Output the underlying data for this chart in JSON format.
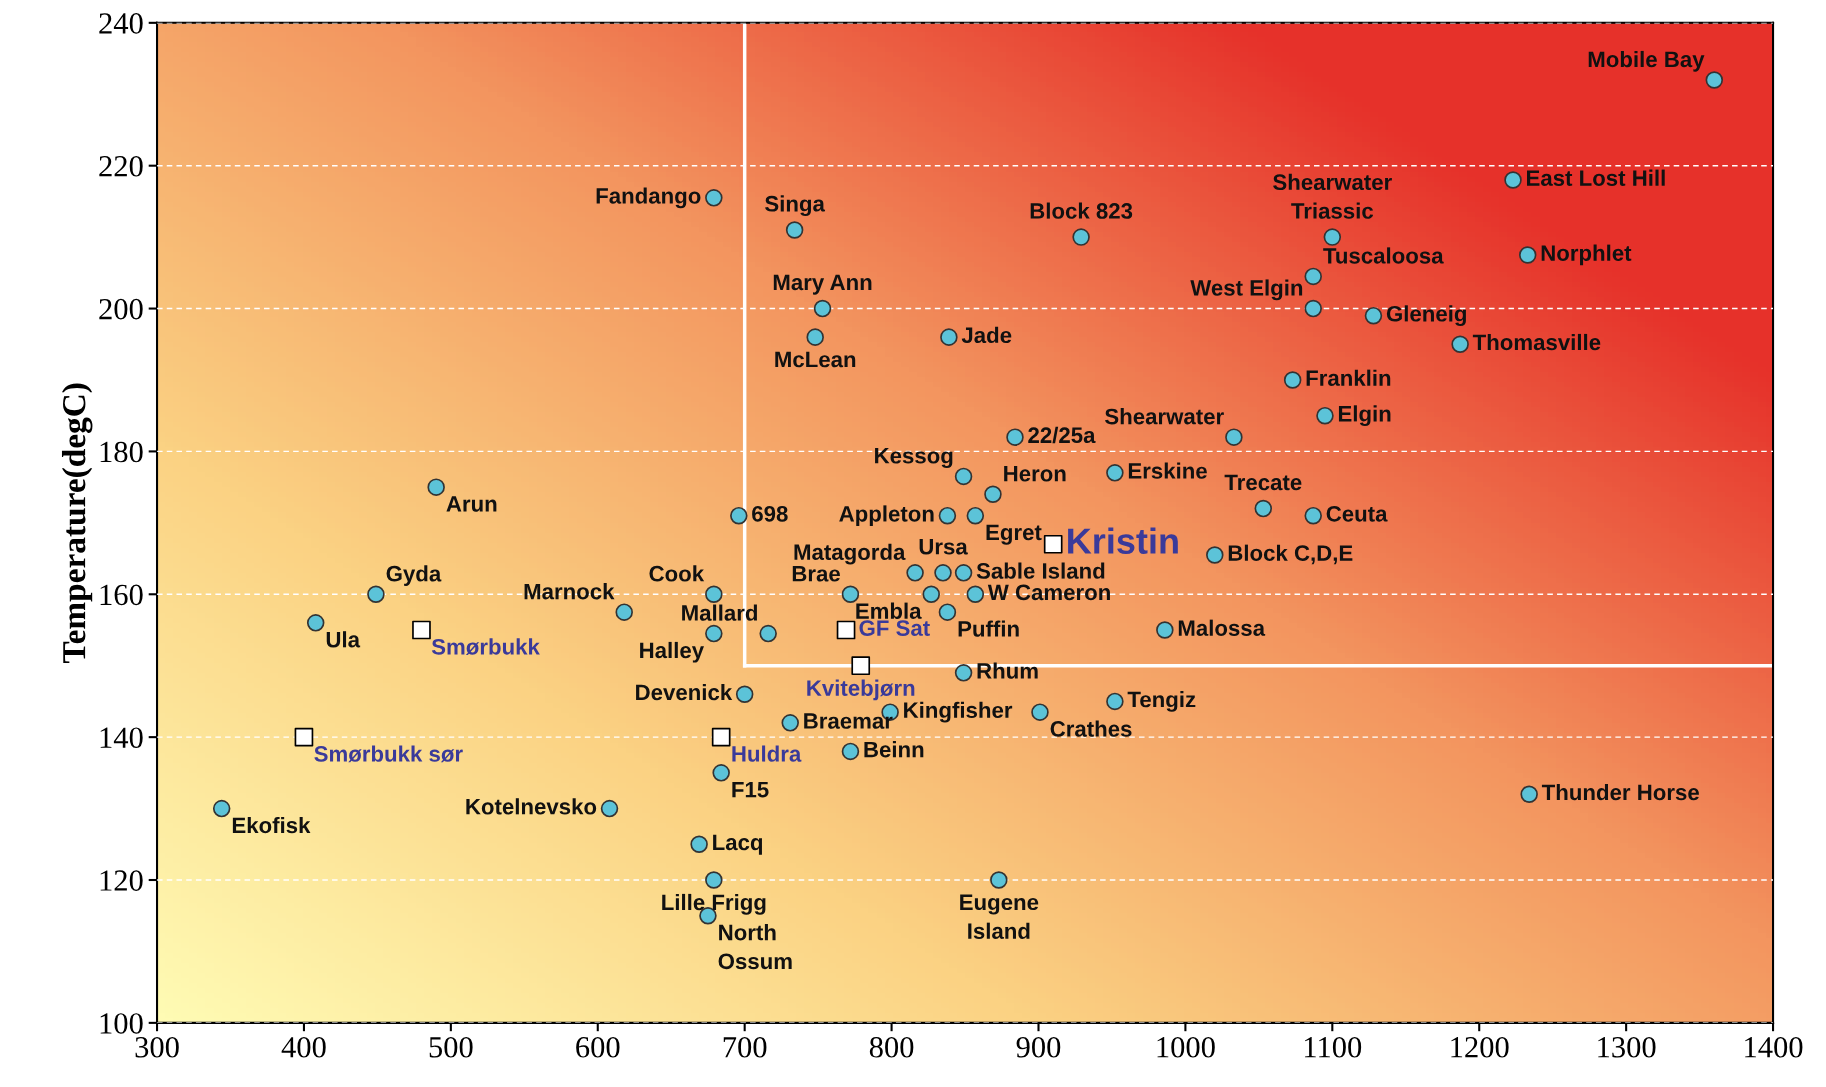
{
  "chart_data": {
    "type": "scatter",
    "ylabel": "Temperature(degC)",
    "xlim": [
      300,
      1400
    ],
    "ylim": [
      100,
      240
    ],
    "xticks": [
      300,
      400,
      500,
      600,
      700,
      800,
      900,
      1000,
      1100,
      1200,
      1300,
      1400
    ],
    "yticks": [
      100,
      120,
      140,
      160,
      180,
      200,
      220,
      240
    ],
    "grid": "y",
    "ref_lines": [
      {
        "axis": "x",
        "value": 700,
        "label": null,
        "color": "#ffffff"
      },
      {
        "axis": "y",
        "value": 150,
        "label": null,
        "color": "#ffffff"
      }
    ],
    "series": [
      {
        "color": "#5cc3d8",
        "marker": "circle",
        "x": [
          1360,
          1223,
          1100,
          1233,
          1087,
          1087,
          1128,
          1187,
          1073,
          1095,
          1033,
          1053,
          1087,
          1020,
          986,
          952,
          901,
          1234,
          679,
          734,
          929,
          753,
          748,
          839,
          884,
          849,
          869,
          952,
          838,
          857,
          696,
          490,
          449,
          408,
          618,
          679,
          679,
          716,
          816,
          835,
          849,
          772,
          827,
          857,
          838,
          849,
          700,
          731,
          799,
          772,
          684,
          608,
          344,
          669,
          679,
          675,
          873
        ],
        "values": [
          232,
          218,
          210,
          207.5,
          204.5,
          200,
          199,
          195,
          190,
          185,
          182,
          172,
          171,
          165.5,
          155,
          145,
          143.5,
          132,
          215.5,
          211,
          210,
          200,
          196,
          196,
          182,
          176.5,
          174,
          177,
          171,
          171,
          171,
          175,
          160,
          156,
          157.5,
          160,
          154.5,
          154.5,
          163,
          163,
          163,
          160,
          160,
          160,
          157.5,
          149,
          146,
          142,
          143.5,
          138,
          135,
          130,
          130,
          125,
          120,
          115,
          120
        ]
      },
      {
        "color": "#ffffff",
        "marker": "square",
        "x": [
          910,
          480,
          400,
          769,
          779,
          684
        ],
        "values": [
          167,
          155,
          140,
          155,
          150,
          140
        ]
      }
    ],
    "annotations": [
      {
        "text": "Mobile Bay",
        "x": 1360,
        "y": 232
      },
      {
        "text": "East Lost Hill",
        "x": 1223,
        "y": 218
      },
      {
        "text": "Shearwater\nTriassic",
        "x": 1100,
        "y": 210
      },
      {
        "text": "Norphlet",
        "x": 1233,
        "y": 207.5
      },
      {
        "text": "Tuscaloosa",
        "x": 1087,
        "y": 204.5
      },
      {
        "text": "West Elgin",
        "x": 1087,
        "y": 200
      },
      {
        "text": "Gleneig",
        "x": 1128,
        "y": 199
      },
      {
        "text": "Thomasville",
        "x": 1187,
        "y": 195
      },
      {
        "text": "Franklin",
        "x": 1073,
        "y": 190
      },
      {
        "text": "Elgin",
        "x": 1095,
        "y": 185
      },
      {
        "text": "Shearwater",
        "x": 1033,
        "y": 182
      },
      {
        "text": "Trecate",
        "x": 1053,
        "y": 172
      },
      {
        "text": "Ceuta",
        "x": 1087,
        "y": 171
      },
      {
        "text": "Block C,D,E",
        "x": 1020,
        "y": 165.5
      },
      {
        "text": "Malossa",
        "x": 986,
        "y": 155
      },
      {
        "text": "Tengiz",
        "x": 952,
        "y": 145
      },
      {
        "text": "Crathes",
        "x": 901,
        "y": 143.5
      },
      {
        "text": "Thunder Horse",
        "x": 1234,
        "y": 132
      },
      {
        "text": "Fandango",
        "x": 679,
        "y": 215.5
      },
      {
        "text": "Singa",
        "x": 734,
        "y": 211
      },
      {
        "text": "Block 823",
        "x": 929,
        "y": 210
      },
      {
        "text": "Mary Ann",
        "x": 753,
        "y": 200
      },
      {
        "text": "McLean",
        "x": 748,
        "y": 196
      },
      {
        "text": "Jade",
        "x": 839,
        "y": 196
      },
      {
        "text": "22/25a",
        "x": 884,
        "y": 182
      },
      {
        "text": "Kessog",
        "x": 849,
        "y": 176.5
      },
      {
        "text": "Heron",
        "x": 869,
        "y": 174
      },
      {
        "text": "Erskine",
        "x": 952,
        "y": 177
      },
      {
        "text": "Appleton",
        "x": 838,
        "y": 171
      },
      {
        "text": "Egret",
        "x": 857,
        "y": 171
      },
      {
        "text": "698",
        "x": 696,
        "y": 171
      },
      {
        "text": "Arun",
        "x": 490,
        "y": 175
      },
      {
        "text": "Gyda",
        "x": 449,
        "y": 160
      },
      {
        "text": "Ula",
        "x": 408,
        "y": 156
      },
      {
        "text": "Marnock",
        "x": 618,
        "y": 157.5
      },
      {
        "text": "Cook",
        "x": 679,
        "y": 160
      },
      {
        "text": "Halley",
        "x": 679,
        "y": 154.5
      },
      {
        "text": "Mallard",
        "x": 716,
        "y": 154.5
      },
      {
        "text": "Matagorda",
        "x": 816,
        "y": 163
      },
      {
        "text": "Ursa",
        "x": 835,
        "y": 163
      },
      {
        "text": "Sable Island",
        "x": 849,
        "y": 163
      },
      {
        "text": "Brae",
        "x": 772,
        "y": 160
      },
      {
        "text": "Embla",
        "x": 827,
        "y": 160
      },
      {
        "text": "W Cameron",
        "x": 857,
        "y": 160
      },
      {
        "text": "Puffin",
        "x": 838,
        "y": 157.5
      },
      {
        "text": "Rhum",
        "x": 849,
        "y": 149
      },
      {
        "text": "Devenick",
        "x": 700,
        "y": 146
      },
      {
        "text": "Braemar",
        "x": 731,
        "y": 142
      },
      {
        "text": "Kingfisher",
        "x": 799,
        "y": 143.5
      },
      {
        "text": "Beinn",
        "x": 772,
        "y": 138
      },
      {
        "text": "F15",
        "x": 684,
        "y": 135
      },
      {
        "text": "Kotelnevsko",
        "x": 608,
        "y": 130
      },
      {
        "text": "Ekofisk",
        "x": 344,
        "y": 130
      },
      {
        "text": "Lacq",
        "x": 669,
        "y": 125
      },
      {
        "text": "Lille Frigg",
        "x": 679,
        "y": 120
      },
      {
        "text": "North\nOssum",
        "x": 675,
        "y": 115
      },
      {
        "text": "Eugene\nIsland",
        "x": 873,
        "y": 120
      },
      {
        "text": "Kristin",
        "x": 910,
        "y": 167
      },
      {
        "text": "Smørbukk",
        "x": 480,
        "y": 155
      },
      {
        "text": "Smørbukk sør",
        "x": 400,
        "y": 140
      },
      {
        "text": "GF Sat",
        "x": 769,
        "y": 155
      },
      {
        "text": "Kvitebjørn",
        "x": 779,
        "y": 150
      },
      {
        "text": "Huldra",
        "x": 684,
        "y": 140
      }
    ]
  }
}
